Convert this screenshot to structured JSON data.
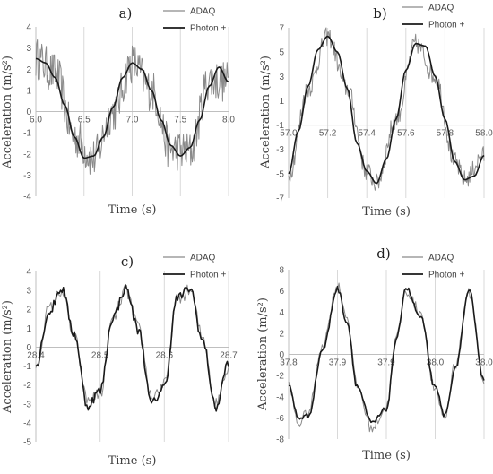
{
  "colors": {
    "adaq": "#8a8a8a",
    "photon": "#1a1a1a",
    "grid": "#d9d9d9",
    "axis": "#bfbfbf"
  },
  "chart_data": [
    {
      "type": "line",
      "panel_label": "a)",
      "xlabel": "Time (s)",
      "ylabel": "Acceleration (m/s²)",
      "xlim": [
        6.0,
        8.0
      ],
      "ylim": [
        -4,
        4
      ],
      "yticks": [
        -4,
        -3,
        -2,
        -1,
        0,
        1,
        2,
        3,
        4
      ],
      "xticks": [
        "6.0",
        "6.5",
        "7.0",
        "7.5",
        "8.0"
      ],
      "xtick_values": [
        6.0,
        6.5,
        7.0,
        7.5,
        8.0
      ],
      "legend_position": "top-right",
      "series": [
        {
          "name": "ADAQ",
          "style": "noisy",
          "x": [
            6.0,
            6.2,
            6.4,
            6.6,
            6.8,
            7.0,
            7.2,
            7.4,
            7.6,
            7.8,
            8.0
          ],
          "values": [
            2.5,
            1.8,
            -1.2,
            -2.2,
            0.0,
            2.3,
            1.0,
            -1.8,
            -1.9,
            1.5,
            1.4
          ],
          "noise": 1.0
        },
        {
          "name": "Photon +",
          "style": "smooth",
          "x": [
            6.0,
            6.1,
            6.2,
            6.3,
            6.4,
            6.5,
            6.6,
            6.7,
            6.8,
            6.9,
            7.0,
            7.1,
            7.2,
            7.3,
            7.4,
            7.5,
            7.6,
            7.7,
            7.8,
            7.9,
            8.0
          ],
          "values": [
            2.5,
            2.3,
            1.6,
            0.3,
            -1.2,
            -2.2,
            -2.1,
            -1.2,
            0.2,
            1.6,
            2.3,
            2.0,
            1.0,
            -0.4,
            -1.6,
            -2.1,
            -1.7,
            -0.4,
            1.2,
            2.1,
            1.4
          ]
        }
      ]
    },
    {
      "type": "line",
      "panel_label": "b)",
      "xlabel": "Time (s)",
      "ylabel": "Acceleration (m/s²)",
      "xlim": [
        57.0,
        58.0
      ],
      "ylim": [
        -7,
        7
      ],
      "yticks": [
        -7,
        -5,
        -3,
        -1,
        1,
        3,
        5,
        7
      ],
      "xticks": [
        "57.0",
        "57.2",
        "57.4",
        "57.6",
        "57.8",
        "58.0"
      ],
      "xtick_values": [
        57.0,
        57.2,
        57.4,
        57.6,
        57.8,
        58.0
      ],
      "legend_position": "top-right",
      "series": [
        {
          "name": "ADAQ",
          "style": "noisy",
          "x": [
            57.0,
            57.1,
            57.2,
            57.3,
            57.4,
            57.45,
            57.55,
            57.65,
            57.75,
            57.85,
            57.9,
            58.0
          ],
          "values": [
            -5.0,
            2.0,
            6.3,
            2.0,
            -4.8,
            -5.8,
            -0.5,
            5.7,
            3.0,
            -4.0,
            -5.5,
            -3.5
          ],
          "noise": 0.8
        },
        {
          "name": "Photon +",
          "style": "smooth",
          "x": [
            57.0,
            57.05,
            57.1,
            57.15,
            57.2,
            57.25,
            57.3,
            57.35,
            57.4,
            57.45,
            57.5,
            57.55,
            57.6,
            57.65,
            57.7,
            57.75,
            57.8,
            57.85,
            57.9,
            57.95,
            58.0
          ],
          "values": [
            -5.0,
            -1.5,
            2.2,
            5.2,
            6.3,
            5.0,
            2.0,
            -2.5,
            -4.8,
            -5.8,
            -3.8,
            -0.5,
            3.5,
            5.7,
            5.5,
            3.0,
            -0.5,
            -4.0,
            -5.5,
            -5.2,
            -3.5
          ]
        }
      ]
    },
    {
      "type": "line",
      "panel_label": "c)",
      "xlabel": "Time (s)",
      "ylabel": "Acceleration (m/s²)",
      "xlim": [
        28.4,
        28.7
      ],
      "ylim": [
        -5,
        4
      ],
      "yticks": [
        -5,
        -4,
        -3,
        -2,
        -1,
        0,
        1,
        2,
        3,
        4
      ],
      "xticks": [
        "28.4",
        "28.5",
        "28.6",
        "28.7"
      ],
      "xtick_values": [
        28.4,
        28.5,
        28.6,
        28.7
      ],
      "legend_position": "top-right",
      "series": [
        {
          "name": "ADAQ",
          "style": "step",
          "x": [
            28.4,
            28.42,
            28.44,
            28.46,
            28.48,
            28.5,
            28.52,
            28.54,
            28.56,
            28.58,
            28.6,
            28.62,
            28.64,
            28.66,
            28.68,
            28.7
          ],
          "values": [
            -1.2,
            2.0,
            3.0,
            0.5,
            -2.8,
            -2.5,
            1.5,
            3.0,
            1.0,
            -2.6,
            -2.0,
            2.5,
            3.0,
            0.5,
            -3.0,
            -1.0
          ],
          "noise": 0.35
        },
        {
          "name": "Photon +",
          "style": "step",
          "x": [
            28.4,
            28.42,
            28.44,
            28.46,
            28.48,
            28.5,
            28.52,
            28.54,
            28.56,
            28.58,
            28.6,
            28.62,
            28.64,
            28.66,
            28.68,
            28.7
          ],
          "values": [
            -1.0,
            1.8,
            3.1,
            0.7,
            -3.1,
            -2.3,
            1.6,
            3.1,
            0.9,
            -3.0,
            -2.1,
            2.6,
            3.1,
            0.3,
            -3.2,
            -0.8
          ]
        }
      ]
    },
    {
      "type": "line",
      "panel_label": "d)",
      "xlabel": "Time (s)",
      "ylabel": "Acceleration (m/s²)",
      "xlim": [
        37.8,
        38.0
      ],
      "ylim": [
        -8,
        8
      ],
      "yticks": [
        -8,
        -6,
        -4,
        -2,
        0,
        2,
        4,
        6,
        8
      ],
      "xticks": [
        "37.8",
        "37.9",
        "37.9",
        "38.0",
        "38.0"
      ],
      "xtick_values": [
        37.8,
        37.85,
        37.9,
        37.95,
        38.0
      ],
      "legend_position": "top-right",
      "series": [
        {
          "name": "ADAQ",
          "style": "step",
          "x": [
            37.8,
            37.81,
            37.82,
            37.835,
            37.85,
            37.86,
            37.87,
            37.885,
            37.9,
            37.91,
            37.92,
            37.935,
            37.95,
            37.96,
            37.97,
            37.985,
            38.0
          ],
          "values": [
            -3.0,
            -6.5,
            -5.5,
            1.0,
            6.5,
            3.5,
            -3.0,
            -7.0,
            -5.0,
            1.5,
            6.0,
            4.0,
            -3.5,
            -6.0,
            -1.0,
            5.8,
            -2.5
          ],
          "noise": 0.5
        },
        {
          "name": "Photon +",
          "style": "step",
          "x": [
            37.8,
            37.81,
            37.82,
            37.835,
            37.85,
            37.86,
            37.87,
            37.885,
            37.9,
            37.91,
            37.92,
            37.935,
            37.95,
            37.96,
            37.97,
            37.985,
            38.0
          ],
          "values": [
            -3.0,
            -6.0,
            -5.8,
            0.5,
            6.2,
            3.0,
            -3.0,
            -6.5,
            -5.2,
            1.2,
            6.3,
            3.5,
            -3.2,
            -5.8,
            -1.5,
            5.9,
            -2.5
          ]
        }
      ]
    }
  ]
}
